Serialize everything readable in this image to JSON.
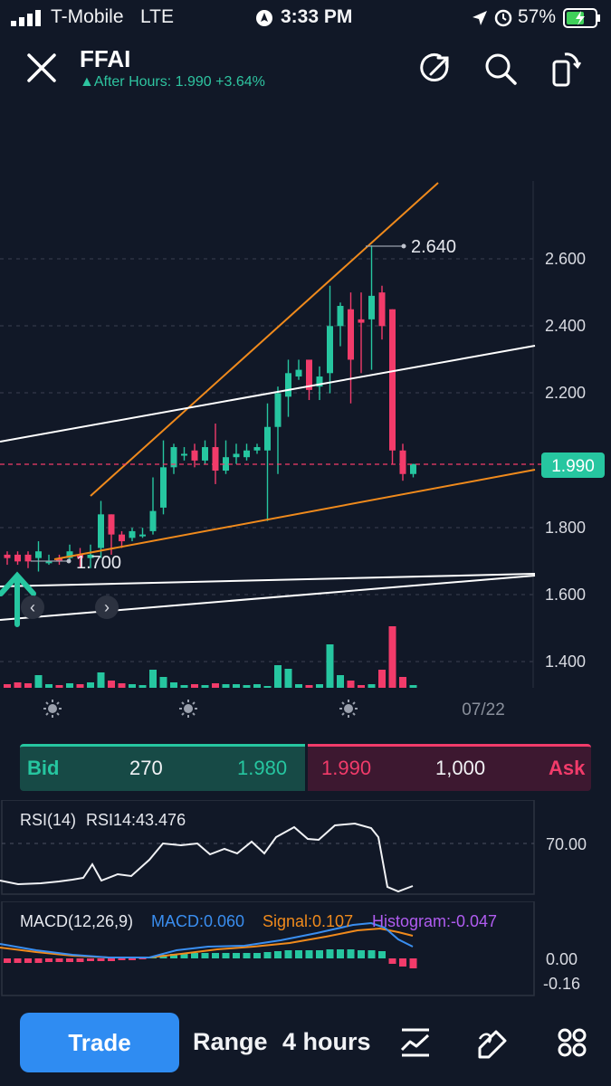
{
  "status_bar": {
    "carrier": "T-Mobile",
    "network": "LTE",
    "time": "3:33 PM",
    "battery": "57%"
  },
  "header": {
    "ticker": "FFAI",
    "after_hours": "After Hours: 1.990 +3.64%",
    "icons": [
      "close-icon",
      "share-icon",
      "search-icon",
      "rotate-icon"
    ]
  },
  "chart": {
    "y_ticks": [
      "2.600",
      "2.400",
      "2.200",
      "1.800",
      "1.600",
      "1.400"
    ],
    "current_price_tag": "1.990",
    "high_annotation": "2.640",
    "low_annotation": "1.700",
    "date_label": "07/22",
    "nav_prev": "‹",
    "nav_next": "›",
    "colors": {
      "up": "#26c6a0",
      "down": "#f23b6a",
      "trend": "#f08a1c",
      "line": "#ffffff"
    }
  },
  "chart_data": {
    "type": "candlestick",
    "current_price": 1.99,
    "high": 2.64,
    "low": 1.7,
    "ylim": [
      1.35,
      2.95
    ]
  },
  "bidask": {
    "bid_label": "Bid",
    "bid_size": "270",
    "bid_price": "1.980",
    "ask_price": "1.990",
    "ask_size": "1,000",
    "ask_label": "Ask"
  },
  "rsi": {
    "label": "RSI(14)",
    "value_text": "RSI14:43.476",
    "level": "70.00"
  },
  "macd": {
    "label": "MACD(12,26,9)",
    "macd_text": "MACD:0.060",
    "signal_text": "Signal:0.107",
    "hist_text": "Histogram:-0.047",
    "zero_tick": "0.00",
    "low_tick": "-0.16"
  },
  "bottom_bar": {
    "trade": "Trade",
    "range": "Range",
    "interval": "4 hours",
    "icons": [
      "indicator-icon",
      "draw-icon",
      "grid-icon"
    ]
  }
}
